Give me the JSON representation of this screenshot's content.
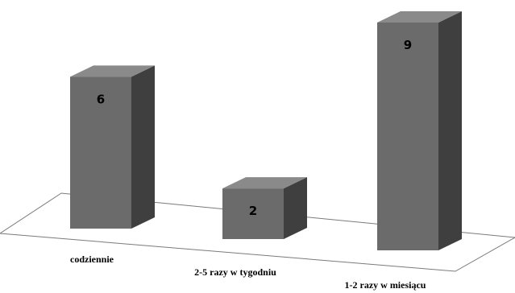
{
  "chart_data": {
    "type": "bar",
    "style": "3d-column",
    "categories": [
      "codziennie",
      "2-5 razy w tygodniu",
      "1-2 razy w miesiącu"
    ],
    "values": [
      6,
      2,
      9
    ],
    "title": "",
    "xlabel": "",
    "ylabel": "",
    "ylim": [
      0,
      9
    ],
    "grid": false,
    "legend": "none",
    "colors": {
      "front": "#6b6b6b",
      "side": "#3f3f3f",
      "top": "#8a8a8a",
      "floor_stroke": "#7a7a7a"
    }
  }
}
